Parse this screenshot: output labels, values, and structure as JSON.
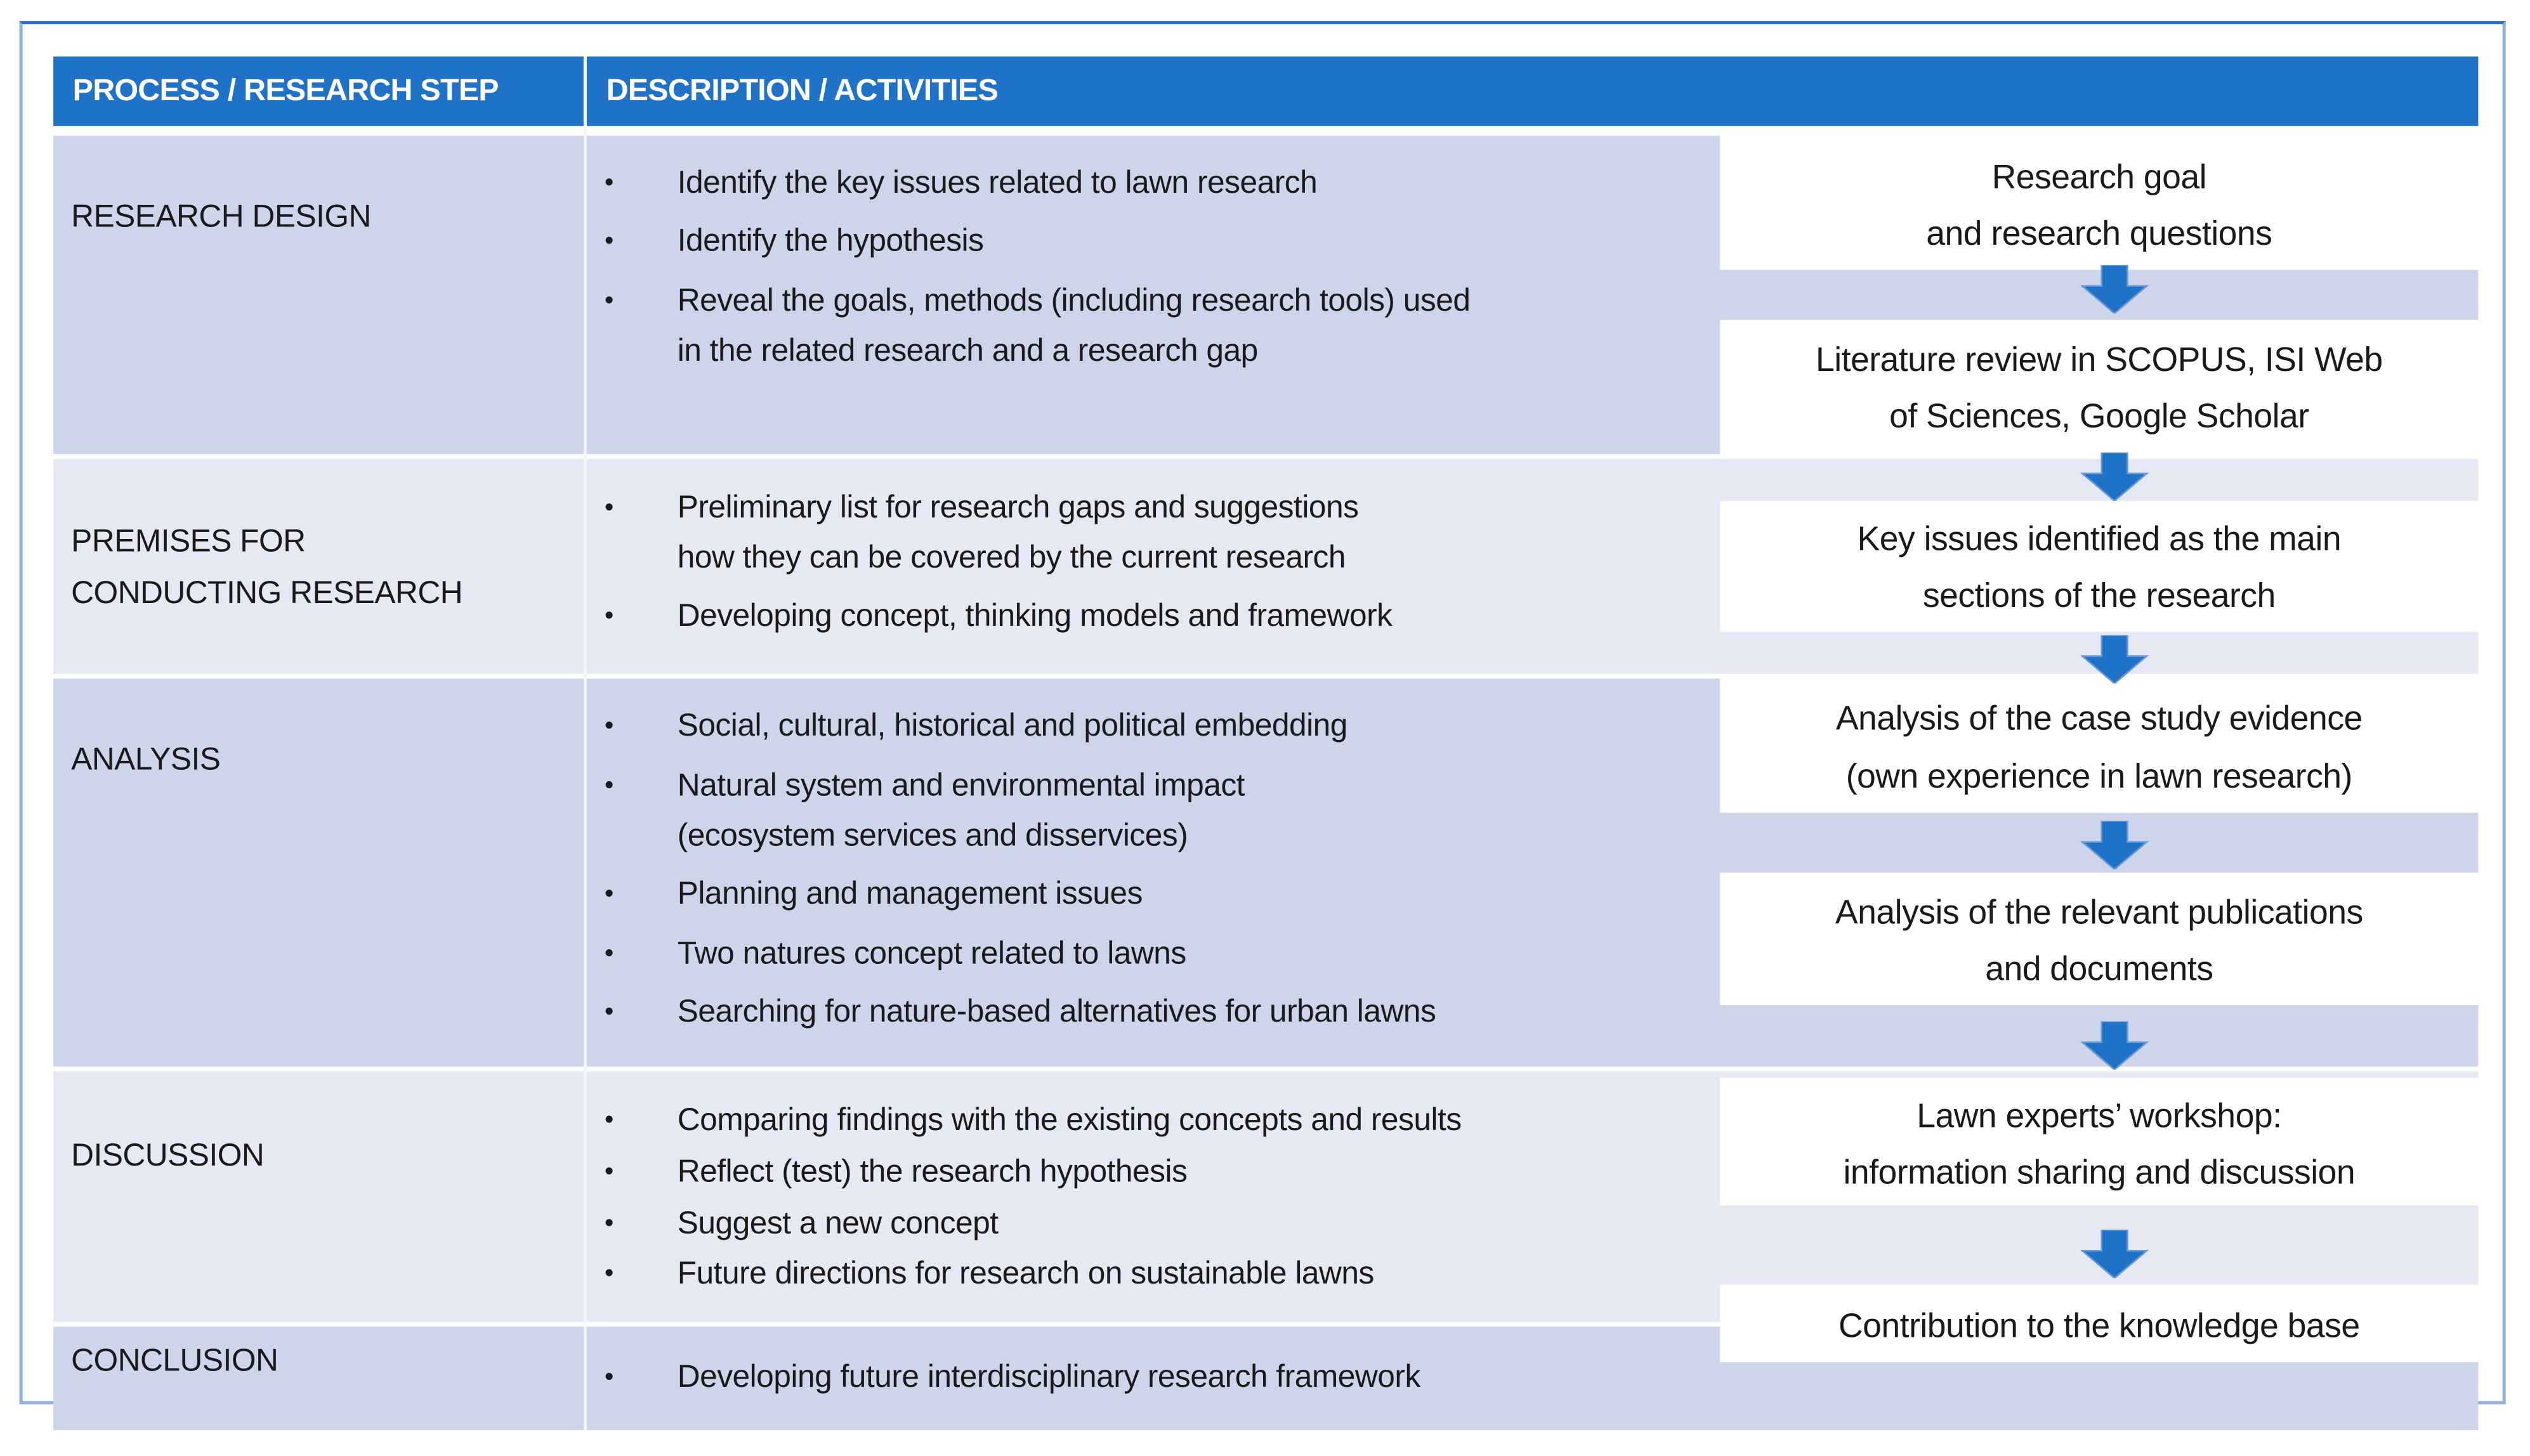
{
  "header": {
    "col1": "PROCESS / RESEARCH STEP",
    "col2": "DESCRIPTION / ACTIVITIES"
  },
  "colors": {
    "header_blue": "#1e72c8",
    "row_dark": "#cdd5ea",
    "row_light": "#e6e9f4",
    "arrow_blue": "#1e72c8"
  },
  "rows": [
    {
      "label": [
        "RESEARCH DESIGN"
      ],
      "bullets": [
        [
          "Identify the key issues related to lawn research"
        ],
        [
          "Identify the hypothesis"
        ],
        [
          "Reveal the goals, methods (including research tools) used",
          "in the related research and a research gap"
        ]
      ]
    },
    {
      "label": [
        "PREMISES FOR",
        "CONDUCTING RESEARCH"
      ],
      "bullets": [
        [
          "Preliminary list for research gaps and suggestions",
          "how they can be covered by the current research"
        ],
        [
          "Developing concept, thinking models and framework"
        ]
      ]
    },
    {
      "label": [
        "ANALYSIS"
      ],
      "bullets": [
        [
          "Social, cultural, historical and political embedding"
        ],
        [
          "Natural system and environmental impact",
          "(ecosystem services and disservices)"
        ],
        [
          "Planning and management issues"
        ],
        [
          "Two natures concept related to lawns"
        ],
        [
          "Searching for nature-based alternatives for urban lawns"
        ]
      ]
    },
    {
      "label": [
        "DISCUSSION"
      ],
      "bullets": [
        [
          "Comparing findings with the existing concepts and results"
        ],
        [
          "Reflect (test) the research hypothesis"
        ],
        [
          "Suggest a new concept"
        ],
        [
          "Future directions for research on sustainable lawns"
        ]
      ]
    },
    {
      "label": [
        "CONCLUSION"
      ],
      "bullets": [
        [
          "Developing future interdisciplinary research framework"
        ]
      ]
    }
  ],
  "flow": [
    [
      "Research goal",
      "and research questions"
    ],
    [
      "Literature review in SCOPUS, ISI Web",
      "of Sciences, Google Scholar"
    ],
    [
      "Key issues identified as the main",
      "sections of the research"
    ],
    [
      "Analysis of the case study evidence",
      "(own experience in lawn research)"
    ],
    [
      "Analysis of the relevant publications",
      "and documents"
    ],
    [
      "Lawn experts’ workshop:",
      "information sharing and discussion"
    ],
    [
      "Contribution to the knowledge base"
    ]
  ]
}
